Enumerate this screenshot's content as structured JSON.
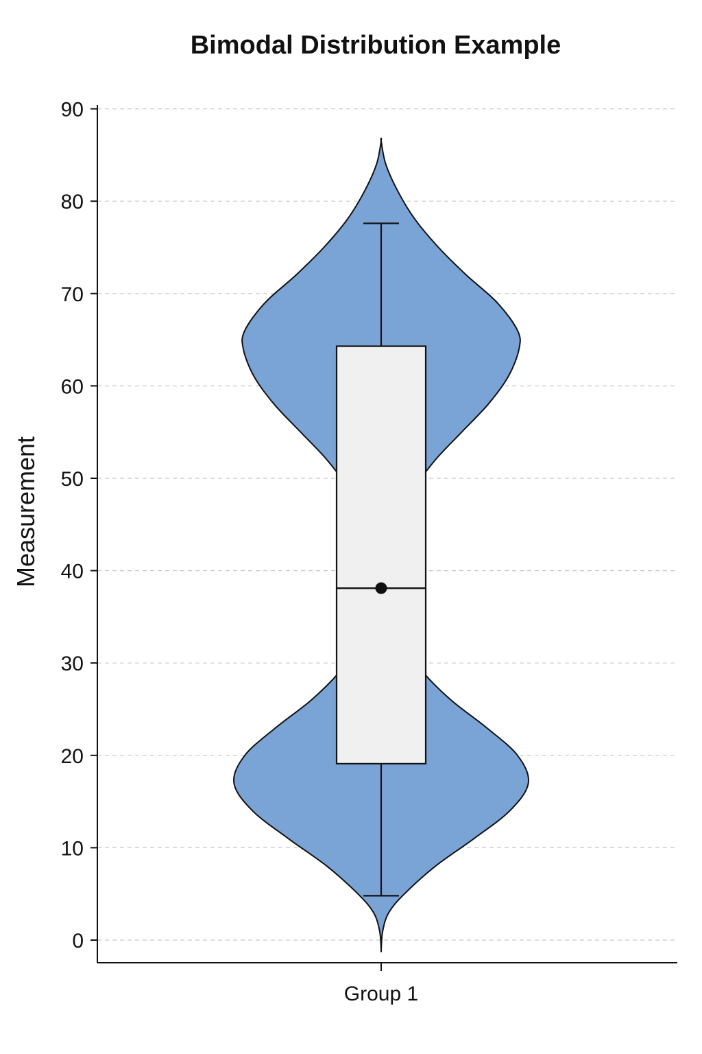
{
  "chart_data": {
    "type": "violin",
    "title": "Bimodal Distribution Example",
    "xlabel": "",
    "ylabel": "Measurement",
    "categories": [
      "Group 1"
    ],
    "yticks": [
      0,
      10,
      20,
      30,
      40,
      50,
      60,
      70,
      80,
      90
    ],
    "ylim": [
      -2.5,
      90
    ],
    "grid": true,
    "colors": {
      "violin_fill": "#7aa3d6",
      "violin_edge": "#111111",
      "box_fill": "#f0f0f0"
    },
    "violin": {
      "y_min": -1,
      "y_max": 86.5,
      "density_profile": [
        [
          -1,
          0.0
        ],
        [
          1,
          0.01
        ],
        [
          3,
          0.05
        ],
        [
          5,
          0.15
        ],
        [
          8,
          0.35
        ],
        [
          11,
          0.6
        ],
        [
          14,
          0.83
        ],
        [
          17,
          0.95
        ],
        [
          20,
          0.88
        ],
        [
          23,
          0.68
        ],
        [
          26,
          0.45
        ],
        [
          29,
          0.27
        ],
        [
          31,
          0.19
        ],
        [
          34,
          0.19
        ],
        [
          37,
          0.23
        ],
        [
          40,
          0.22
        ],
        [
          43,
          0.17
        ],
        [
          46,
          0.16
        ],
        [
          49,
          0.22
        ],
        [
          52,
          0.35
        ],
        [
          55,
          0.52
        ],
        [
          58,
          0.69
        ],
        [
          61,
          0.82
        ],
        [
          64,
          0.89
        ],
        [
          66,
          0.88
        ],
        [
          69,
          0.75
        ],
        [
          72,
          0.55
        ],
        [
          75,
          0.37
        ],
        [
          78,
          0.22
        ],
        [
          81,
          0.11
        ],
        [
          84,
          0.03
        ],
        [
          86.5,
          0.0
        ]
      ]
    },
    "box": {
      "whisker_low": 4.8,
      "q1": 19.1,
      "median": 38.1,
      "q3": 64.3,
      "whisker_high": 77.6,
      "mean": 38.1
    }
  }
}
